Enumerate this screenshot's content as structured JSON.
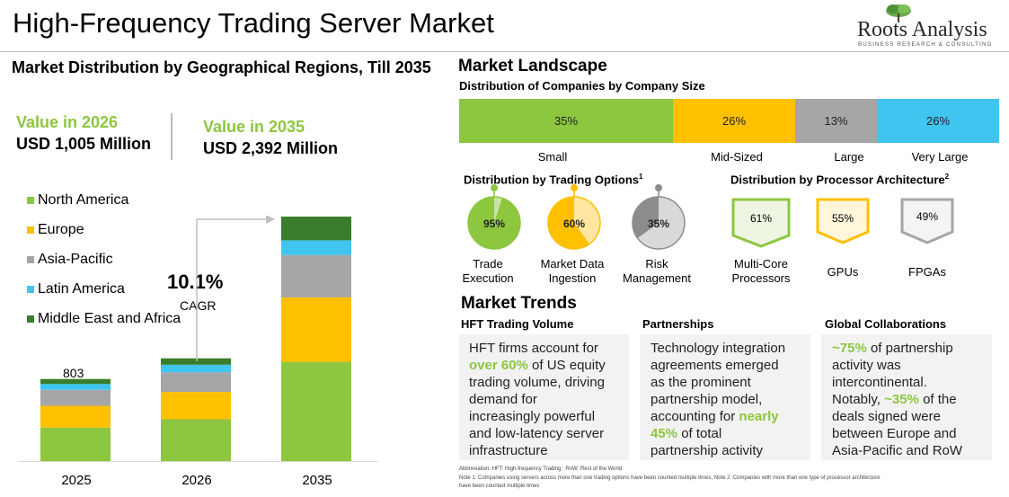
{
  "header": {
    "title": "High-Frequency Trading Server Market",
    "logo_name": "Roots Analysis",
    "logo_tagline": "BUSINESS RESEARCH & CONSULTING"
  },
  "left_panel": {
    "title": "Market Distribution by Geographical Regions, Till 2035",
    "value_2026_label": "Value in 2026",
    "value_2026": "USD 1,005 Million",
    "value_2035_label": "Value in 2035",
    "value_2035": "USD 2,392 Million",
    "cagr_value": "10.1%",
    "cagr_label": "CAGR",
    "bar_2025_total_label": "803"
  },
  "colors": {
    "green": "#8dc63f",
    "yellow": "#ffc000",
    "gray": "#a6a6a6",
    "blue": "#3fc5f0",
    "dark_green": "#3a7d2b"
  },
  "chart_data": {
    "type": "bar",
    "stacked": true,
    "categories": [
      "2025",
      "2026",
      "2035"
    ],
    "series": [
      {
        "name": "North America",
        "color": "#8dc63f",
        "values": [
          327,
          409,
          971
        ]
      },
      {
        "name": "Europe",
        "color": "#ffc000",
        "values": [
          214,
          267,
          631
        ]
      },
      {
        "name": "Asia-Pacific",
        "color": "#a6a6a6",
        "values": [
          155,
          193,
          414
        ]
      },
      {
        "name": "Latin America",
        "color": "#3fc5f0",
        "values": [
          59,
          74,
          144
        ]
      },
      {
        "name": "Middle East and Africa",
        "color": "#3a7d2b",
        "values": [
          48,
          62,
          232
        ]
      }
    ],
    "totals": [
      803,
      1005,
      2392
    ],
    "ylim": [
      0,
      2392
    ],
    "legend_position": "top-left"
  },
  "landscape": {
    "title": "Market Landscape",
    "size_subtitle": "Distribution of Companies by Company Size",
    "company_size": [
      {
        "label": "Small",
        "value": 35,
        "text": "35%",
        "color": "#8dc63f"
      },
      {
        "label": "Mid-Sized",
        "value": 26,
        "text": "26%",
        "color": "#ffc000"
      },
      {
        "label": "Large",
        "value": 13,
        "text": "13%",
        "color": "#a6a6a6"
      },
      {
        "label": "Very Large",
        "value": 26,
        "text": "26%",
        "color": "#3fc5f0"
      }
    ],
    "trading_title": "Distribution by  Trading Options",
    "trading_sup": "1",
    "trading_options": [
      {
        "label_line1": "Trade",
        "label_line2": "Execution",
        "value": 95,
        "text": "95%",
        "color": "#8dc63f",
        "light": "#c9e3a5"
      },
      {
        "label_line1": "Market Data",
        "label_line2": "Ingestion",
        "value": 60,
        "text": "60%",
        "color": "#ffc000",
        "light": "#ffe6a1"
      },
      {
        "label_line1": "Risk",
        "label_line2": "Management",
        "value": 35,
        "text": "35%",
        "color": "#8c8c8c",
        "light": "#d9d9d9"
      }
    ],
    "processor_title": "Distribution by  Processor Architecture",
    "processor_sup": "2",
    "processors": [
      {
        "label_line1": "Multi-Core",
        "label_line2": "Processors",
        "text": "61%",
        "color": "#8dc63f"
      },
      {
        "label_line1": "GPUs",
        "label_line2": "",
        "text": "55%",
        "color": "#ffc000"
      },
      {
        "label_line1": "FPGAs",
        "label_line2": "",
        "text": "49%",
        "color": "#a6a6a6"
      }
    ]
  },
  "trends": {
    "title": "Market Trends",
    "columns": [
      {
        "heading": "HFT Trading Volume"
      },
      {
        "heading": "Partnerships"
      },
      {
        "heading": "Global Collaborations"
      }
    ],
    "t1_a": "HFT firms account for",
    "t1_hl": "over 60%",
    "t1_b": "of US equity",
    "t1_c": "trading volume, driving",
    "t1_d": "demand for",
    "t1_e": "increasingly powerful",
    "t1_f": "and low-latency server",
    "t1_g": "infrastructure",
    "t2_a": "Technology integration",
    "t2_b": "agreements emerged",
    "t2_c": "as the prominent",
    "t2_d": "partnership model,",
    "t2_e": "accounting for",
    "t2_hl1": "nearly",
    "t2_hl2": "45%",
    "t2_f": "of total",
    "t2_g": "partnership activity",
    "t3_hl1": "~75%",
    "t3_a": "of partnership",
    "t3_b": "activity was",
    "t3_c": "intercontinental.",
    "t3_d": "Notably,",
    "t3_hl2": "~35%",
    "t3_e": "of the",
    "t3_f": "deals signed were",
    "t3_g": "between Europe and",
    "t3_h": "Asia-Pacific and RoW"
  },
  "footnotes": {
    "line1": "Abbreviation: HFT: High-frequency Trading ; RoW: Rest of the World",
    "line2": "Note 1: Companies using servers across more than one trading options have been counted multiple times, Note 2: Companies with more than one type of processor architecture",
    "line3": "have been counted multiple times"
  }
}
